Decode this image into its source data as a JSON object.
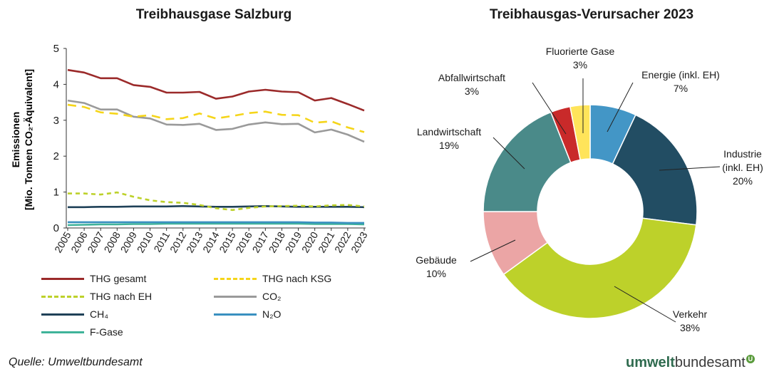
{
  "chart_data": [
    {
      "type": "line",
      "title": "Treibhausgase Salzburg",
      "ylabel_line1": "Emissionen",
      "ylabel_line2": "[Mio. Tonnen CO₂-Äquivalent]",
      "ylim": [
        0,
        5
      ],
      "yticks": [
        "0",
        "1",
        "2",
        "3",
        "4",
        "5"
      ],
      "x": [
        "2005",
        "2006",
        "2007",
        "2008",
        "2009",
        "2010",
        "2011",
        "2012",
        "2013",
        "2014",
        "2015",
        "2016",
        "2017",
        "2018",
        "2019",
        "2020",
        "2021",
        "2022",
        "2023"
      ],
      "series": [
        {
          "name": "THG gesamt",
          "color": "#9b2a2a",
          "dash": "solid",
          "values": [
            4.4,
            4.33,
            4.17,
            4.17,
            3.98,
            3.93,
            3.77,
            3.77,
            3.79,
            3.6,
            3.66,
            3.8,
            3.85,
            3.8,
            3.78,
            3.55,
            3.62,
            3.45,
            3.27
          ]
        },
        {
          "name": "THG nach KSG",
          "color": "#f5d51a",
          "dash": "long",
          "values": [
            3.43,
            3.37,
            3.22,
            3.18,
            3.1,
            3.14,
            3.03,
            3.06,
            3.19,
            3.05,
            3.12,
            3.2,
            3.24,
            3.15,
            3.14,
            2.93,
            2.97,
            2.8,
            2.67
          ]
        },
        {
          "name": "THG nach EH",
          "color": "#bdd12a",
          "dash": "short",
          "values": [
            0.96,
            0.96,
            0.93,
            0.99,
            0.87,
            0.77,
            0.72,
            0.7,
            0.64,
            0.55,
            0.5,
            0.56,
            0.6,
            0.61,
            0.62,
            0.6,
            0.63,
            0.64,
            0.6
          ]
        },
        {
          "name": "CO₂",
          "color": "#9a9a9a",
          "dash": "solid",
          "values": [
            3.55,
            3.48,
            3.3,
            3.3,
            3.1,
            3.05,
            2.88,
            2.87,
            2.9,
            2.73,
            2.76,
            2.88,
            2.94,
            2.89,
            2.9,
            2.66,
            2.74,
            2.6,
            2.4
          ]
        },
        {
          "name": "CH₄",
          "color": "#1f4158",
          "dash": "solid",
          "values": [
            0.58,
            0.58,
            0.59,
            0.59,
            0.6,
            0.6,
            0.6,
            0.61,
            0.6,
            0.59,
            0.59,
            0.6,
            0.61,
            0.6,
            0.59,
            0.59,
            0.59,
            0.59,
            0.58
          ]
        },
        {
          "name": "N₂O",
          "color": "#3a90c0",
          "dash": "solid",
          "values": [
            0.16,
            0.16,
            0.16,
            0.16,
            0.16,
            0.16,
            0.16,
            0.16,
            0.16,
            0.16,
            0.16,
            0.16,
            0.16,
            0.16,
            0.16,
            0.15,
            0.15,
            0.14,
            0.14
          ]
        },
        {
          "name": "F-Gase",
          "color": "#3fb39a",
          "dash": "solid",
          "values": [
            0.08,
            0.09,
            0.1,
            0.1,
            0.11,
            0.11,
            0.12,
            0.12,
            0.12,
            0.12,
            0.12,
            0.12,
            0.12,
            0.12,
            0.12,
            0.11,
            0.11,
            0.11,
            0.1
          ]
        }
      ]
    },
    {
      "type": "pie",
      "title": "Treibhausgas-Verursacher 2023",
      "slices": [
        {
          "name": "Energie (inkl. EH)",
          "label_lines": [
            "Energie (inkl. EH)"
          ],
          "value": 7,
          "pct": "7%",
          "color": "#4396c6"
        },
        {
          "name": "Industrie (inkl. EH)",
          "label_lines": [
            "Industrie",
            "(inkl. EH)"
          ],
          "value": 20,
          "pct": "20%",
          "color": "#224d63"
        },
        {
          "name": "Verkehr",
          "label_lines": [
            "Verkehr"
          ],
          "value": 38,
          "pct": "38%",
          "color": "#bdd12a"
        },
        {
          "name": "Gebäude",
          "label_lines": [
            "Gebäude"
          ],
          "value": 10,
          "pct": "10%",
          "color": "#eba5a5"
        },
        {
          "name": "Landwirtschaft",
          "label_lines": [
            "Landwirtschaft"
          ],
          "value": 19,
          "pct": "19%",
          "color": "#4a8a89"
        },
        {
          "name": "Abfallwirtschaft",
          "label_lines": [
            "Abfallwirtschaft"
          ],
          "value": 3,
          "pct": "3%",
          "color": "#c92a2a"
        },
        {
          "name": "Fluorierte Gase",
          "label_lines": [
            "Fluorierte Gase"
          ],
          "value": 3,
          "pct": "3%",
          "color": "#ffe45a"
        }
      ]
    }
  ],
  "source": "Quelle: Umweltbundesamt",
  "brand": {
    "bold": "umwelt",
    "rest": "bundesamt",
    "mark": "U"
  }
}
